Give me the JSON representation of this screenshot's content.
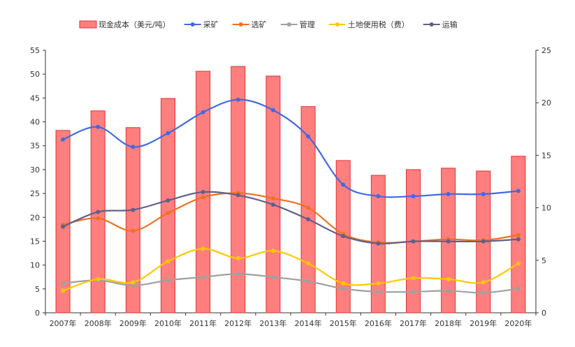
{
  "chart_data": {
    "type": "bar+line",
    "categories": [
      "2007年",
      "2008年",
      "2009年",
      "2010年",
      "2011年",
      "2012年",
      "2013年",
      "2014年",
      "2015年",
      "2016年",
      "2017年",
      "2018年",
      "2019年",
      "2020年"
    ],
    "left_axis": {
      "ylim": [
        0,
        55
      ],
      "ticks": [
        0,
        5,
        10,
        15,
        20,
        25,
        30,
        35,
        40,
        45,
        50,
        55
      ]
    },
    "right_axis": {
      "ylim": [
        0,
        25
      ],
      "ticks": [
        0,
        5,
        10,
        15,
        20,
        25
      ]
    },
    "bar_series": {
      "name": "现金成本（美元/吨）",
      "color": "#ff7f7f",
      "border": "#e03030",
      "axis": "left",
      "values": [
        38.2,
        42.3,
        38.8,
        44.9,
        50.6,
        51.6,
        49.6,
        43.2,
        31.9,
        28.8,
        30.0,
        30.3,
        29.7,
        32.8
      ]
    },
    "series": [
      {
        "name": "采矿",
        "color": "#4169e1",
        "axis": "right",
        "values": [
          16.5,
          17.7,
          15.8,
          17.1,
          19.1,
          20.3,
          19.3,
          16.8,
          12.2,
          11.1,
          11.1,
          11.3,
          11.3,
          11.6
        ]
      },
      {
        "name": "选矿",
        "color": "#f07020",
        "axis": "right",
        "values": [
          8.4,
          9.0,
          7.8,
          9.5,
          11.0,
          11.4,
          10.9,
          10.0,
          7.5,
          6.7,
          6.8,
          7.0,
          6.9,
          7.4
        ]
      },
      {
        "name": "管理",
        "color": "#a0a0a0",
        "axis": "right",
        "values": [
          2.8,
          3.1,
          2.6,
          3.1,
          3.4,
          3.7,
          3.4,
          3.0,
          2.3,
          2.0,
          2.0,
          2.1,
          1.9,
          2.3
        ]
      },
      {
        "name": "土地使用税（费）",
        "color": "#ffc800",
        "axis": "right",
        "values": [
          2.1,
          3.2,
          2.9,
          4.9,
          6.1,
          5.2,
          5.9,
          4.7,
          2.8,
          2.8,
          3.3,
          3.2,
          2.9,
          4.7
        ]
      },
      {
        "name": "运输",
        "color": "#5f5f8a",
        "axis": "right",
        "values": [
          8.2,
          9.6,
          9.8,
          10.7,
          11.5,
          11.2,
          10.3,
          8.9,
          7.3,
          6.6,
          6.8,
          6.8,
          6.8,
          7.0
        ]
      }
    ],
    "legend_position": "top-center",
    "grid": false
  }
}
